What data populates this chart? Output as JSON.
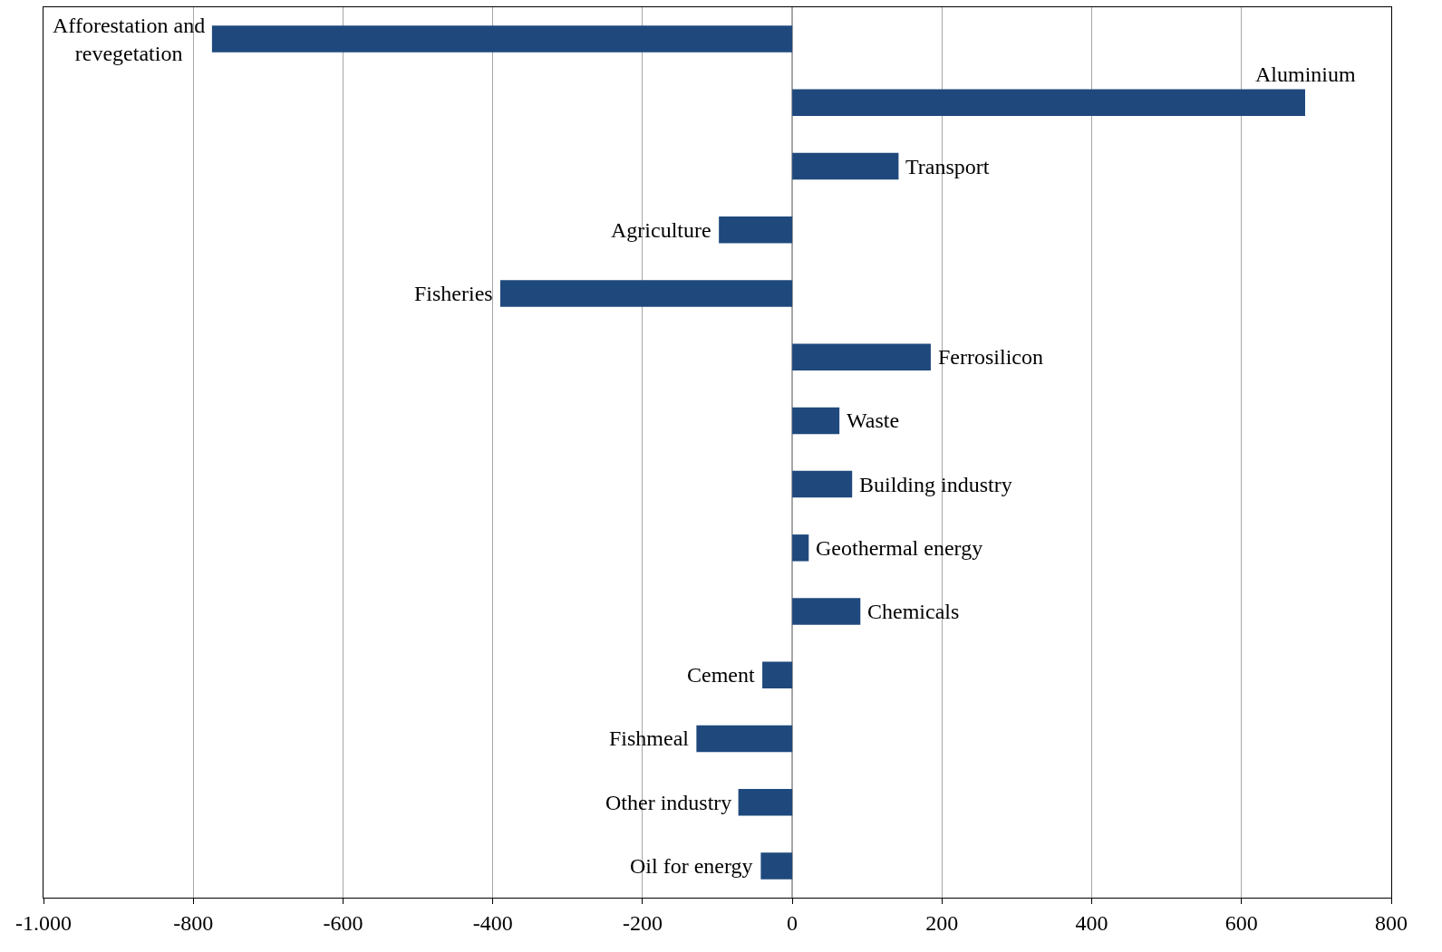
{
  "chart_data": {
    "type": "bar",
    "orientation": "horizontal",
    "categories": [
      "Afforestation and revegetation",
      "Aluminium",
      "Transport",
      "Agriculture",
      "Fisheries",
      "Ferrosilicon",
      "Waste",
      "Building industry",
      "Geothermal energy",
      "Chemicals",
      "Cement",
      "Fishmeal",
      "Other industry",
      "Oil for energy"
    ],
    "values": [
      -775,
      685,
      142,
      -98,
      -390,
      185,
      63,
      80,
      22,
      91,
      -40,
      -128,
      -72,
      -42
    ],
    "color": "#1f497d",
    "xlim": [
      -1000,
      800
    ],
    "xticks": [
      {
        "value": -1000,
        "label": "-1.000"
      },
      -800,
      -600,
      -400,
      -200,
      0,
      200,
      400,
      600,
      800
    ],
    "grid": "x",
    "legend": false,
    "tick_labels": "x"
  }
}
